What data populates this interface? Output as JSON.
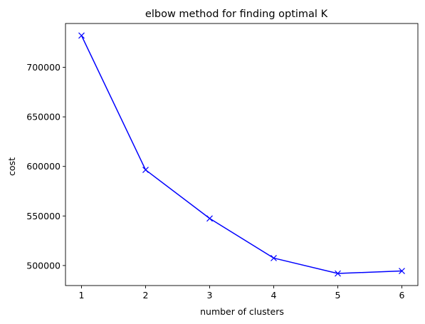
{
  "chart_data": {
    "type": "line",
    "title": "elbow method for finding optimal K",
    "xlabel": "number of clusters",
    "ylabel": "cost",
    "x": [
      1,
      2,
      3,
      4,
      5,
      6
    ],
    "series": [
      {
        "values": [
          732000,
          596500,
          547500,
          507500,
          492000,
          494500
        ],
        "color": "#0000ff",
        "marker": "x"
      }
    ],
    "xticks": [
      1,
      2,
      3,
      4,
      5,
      6
    ],
    "yticks": [
      500000,
      550000,
      600000,
      650000,
      700000
    ],
    "xlim": [
      0.75,
      6.25
    ],
    "ylim": [
      479800,
      744200
    ],
    "grid": false
  }
}
